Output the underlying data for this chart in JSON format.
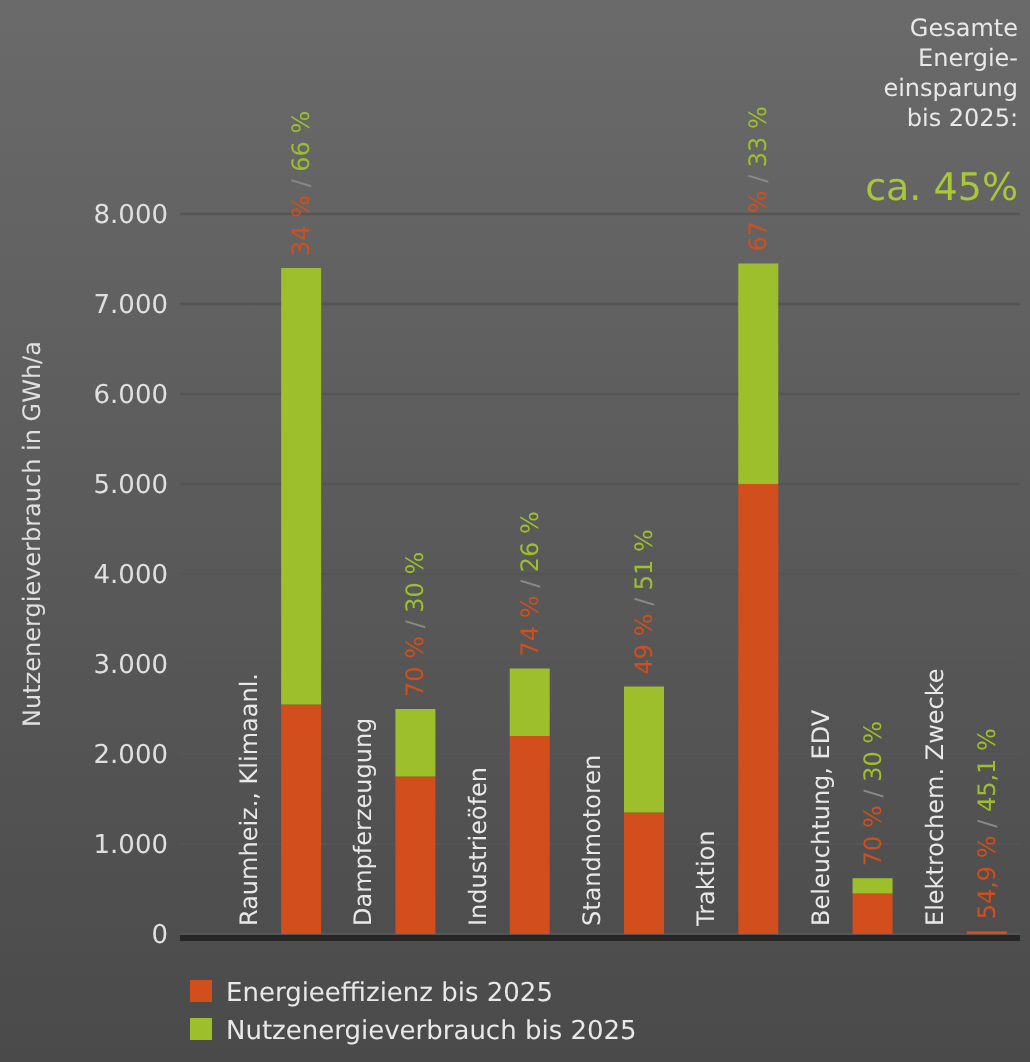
{
  "chart_data": {
    "type": "bar",
    "stacked": true,
    "ylabel": "Nutzenergieverbrauch in GWh/a",
    "categories": [
      "Raumheiz., Klimaanl.",
      "Dampferzeugung",
      "Industrieöfen",
      "Standmotoren",
      "Traktion",
      "Beleuchtung, EDV",
      "Elektrochem. Zwecke"
    ],
    "series": [
      {
        "name": "Energieeffizienz bis 2025",
        "color": "#d24e1c",
        "values": [
          2550,
          1750,
          2200,
          1350,
          5000,
          450,
          30
        ]
      },
      {
        "name": "Nutzenergieverbrauch bis 2025",
        "color": "#9dbf2c",
        "values": [
          4850,
          750,
          750,
          1400,
          2450,
          170,
          0
        ]
      }
    ],
    "ylim": [
      0,
      8000
    ],
    "yticks": [
      {
        "value": 0,
        "label": "0"
      },
      {
        "value": 1000,
        "label": "1.000"
      },
      {
        "value": 2000,
        "label": "2.000"
      },
      {
        "value": 3000,
        "label": "3.000"
      },
      {
        "value": 4000,
        "label": "4.000"
      },
      {
        "value": 5000,
        "label": "5.000"
      },
      {
        "value": 6000,
        "label": "6.000"
      },
      {
        "value": 7000,
        "label": "7.000"
      },
      {
        "value": 8000,
        "label": "8.000"
      }
    ],
    "grid": "y",
    "legend": "bottom left",
    "annotations": [
      "Gesamte Energie-einsparung bis 2025:",
      "ca. 45%",
      "34 % / 66 %",
      "70 % / 30 %",
      "74 % / 26 %",
      "49 % / 51 %",
      "67 % / 33 %",
      "70 % / 30 %",
      "54,9 % / 45,1 %"
    ]
  }
}
